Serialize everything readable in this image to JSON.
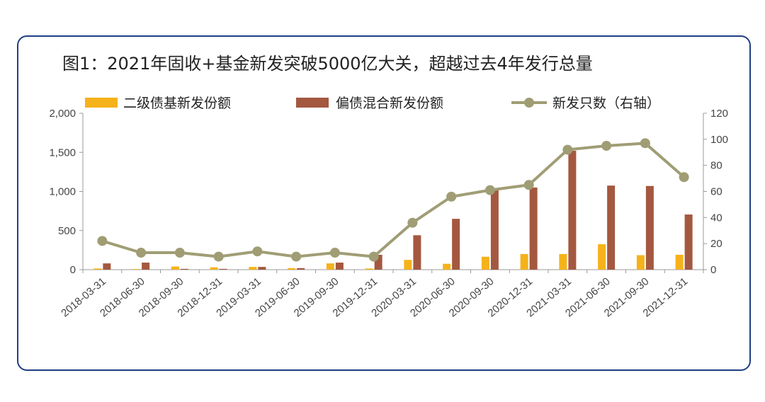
{
  "title": "图1：2021年固收+基金新发突破5000亿大关，超越过去4年发行总量",
  "colors": {
    "frame": "#1f3f85",
    "secondary_bond": "#f5b21a",
    "partial_bond": "#a4583f",
    "count_line": "#a09d75"
  },
  "chart_data": {
    "type": "bar",
    "categories": [
      "2018-03-31",
      "2018-06-30",
      "2018-09-30",
      "2018-12-31",
      "2019-03-31",
      "2019-06-30",
      "2019-09-30",
      "2019-12-31",
      "2020-03-31",
      "2020-06-30",
      "2020-09-30",
      "2020-12-31",
      "2021-03-31",
      "2021-06-30",
      "2021-09-30",
      "2021-12-31"
    ],
    "series": [
      {
        "name": "二级债基新发份额",
        "type": "bar",
        "axis": "left",
        "values": [
          15,
          8,
          40,
          30,
          35,
          20,
          80,
          15,
          125,
          75,
          165,
          200,
          200,
          325,
          185,
          190
        ]
      },
      {
        "name": "偏债混合新发份额",
        "type": "bar",
        "axis": "left",
        "values": [
          80,
          90,
          10,
          10,
          35,
          20,
          90,
          190,
          440,
          650,
          1020,
          1050,
          1520,
          1075,
          1070,
          705
        ]
      },
      {
        "name": "新发只数（右轴）",
        "type": "line",
        "axis": "right",
        "values": [
          22,
          13,
          13,
          10,
          14,
          10,
          13,
          10,
          36,
          56,
          61,
          65,
          92,
          95,
          97,
          71
        ]
      }
    ],
    "left_axis": {
      "min": 0,
      "max": 2000,
      "ticks": [
        "0",
        "500",
        "1,000",
        "1,500",
        "2,000"
      ],
      "tick_values": [
        0,
        500,
        1000,
        1500,
        2000
      ]
    },
    "right_axis": {
      "min": 0,
      "max": 120,
      "ticks": [
        "0",
        "20",
        "40",
        "60",
        "80",
        "100",
        "120"
      ],
      "tick_values": [
        0,
        20,
        40,
        60,
        80,
        100,
        120
      ]
    },
    "legend_position": "top",
    "grid": false
  }
}
